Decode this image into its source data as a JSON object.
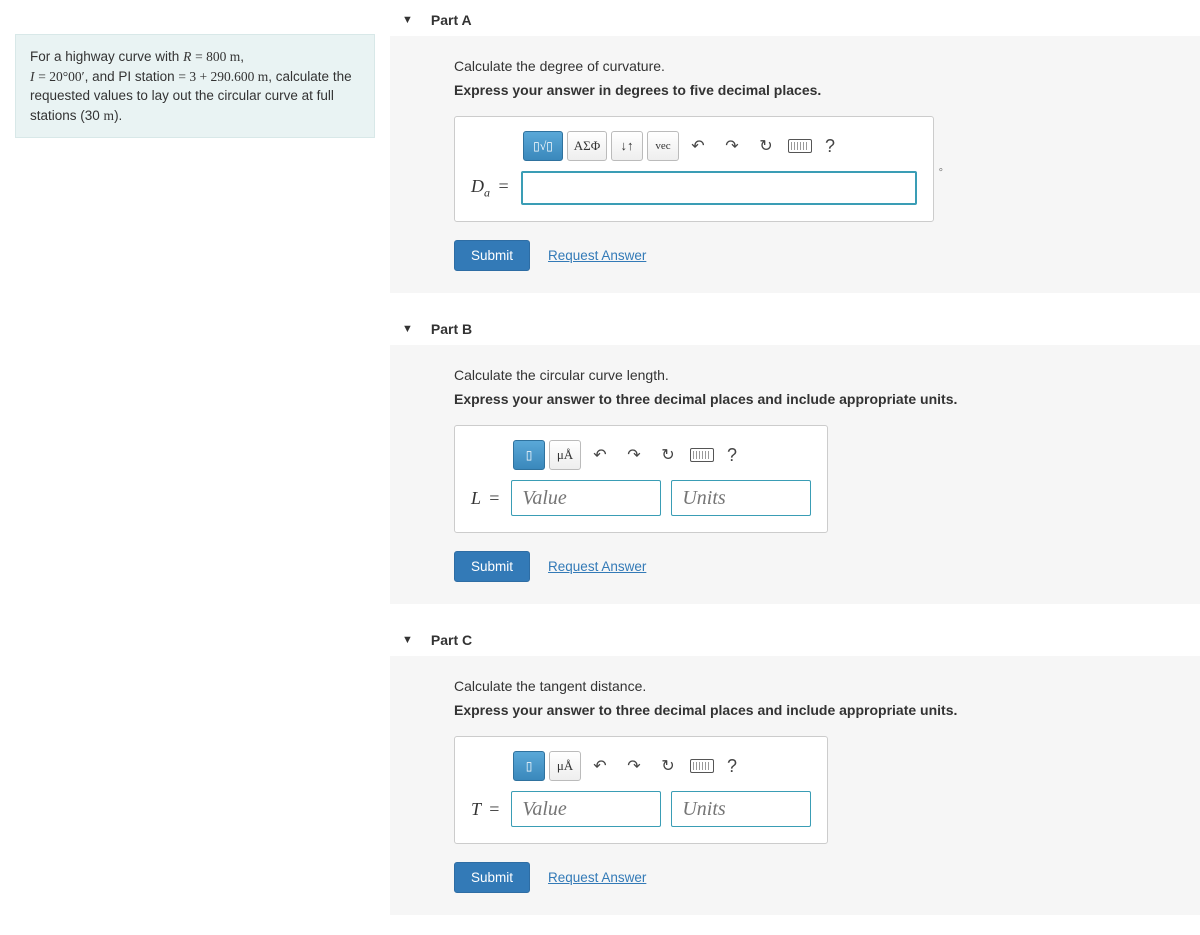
{
  "problem": {
    "html": "For a highway curve with <span class='mi'>R</span> <span class='mr'>= 800 m</span>, <br><span class='mi'>I</span> <span class='mr'>= 20°00′</span>, and PI station <span class='mr'>= 3 + 290.600 m</span>, calculate the requested values to lay out the circular curve at full stations (30 <span class='mr'>m</span>)."
  },
  "parts": {
    "a": {
      "title": "Part A",
      "prompt1": "Calculate the degree of curvature.",
      "prompt2": "Express your answer in degrees to five decimal places.",
      "varLabelHtml": "D<span class='sub'>a</span> <span class='eq'>=</span>",
      "unitSuffix": "°",
      "toolbar": {
        "templates": "▯√▯",
        "greek": "ΑΣΦ",
        "scripts": "↓↑",
        "vec": "vec"
      }
    },
    "b": {
      "title": "Part B",
      "prompt1": "Calculate the circular curve length.",
      "prompt2": "Express your answer to three decimal places and include appropriate units.",
      "varLabelHtml": "L <span class='eq'>=</span>",
      "valuePlaceholder": "Value",
      "unitsPlaceholder": "Units",
      "toolbar": {
        "t1": "▯",
        "t2": "μÅ"
      }
    },
    "c": {
      "title": "Part C",
      "prompt1": "Calculate the tangent distance.",
      "prompt2": "Express your answer to three decimal places and include appropriate units.",
      "varLabelHtml": "T <span class='eq'>=</span>",
      "valuePlaceholder": "Value",
      "unitsPlaceholder": "Units",
      "toolbar": {
        "t1": "▯",
        "t2": "μÅ"
      }
    }
  },
  "labels": {
    "submit": "Submit",
    "request": "Request Answer",
    "help": "?"
  }
}
